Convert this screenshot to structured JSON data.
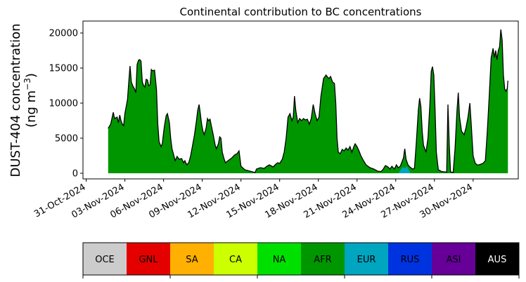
{
  "chart_data": {
    "type": "area",
    "title": "Continental contribution to BC concentrations",
    "ylabel_line1": "DUST-404 concentration",
    "ylabel_line2_prefix": "(ng m",
    "ylabel_line2_exponent": "−3",
    "ylabel_line2_suffix": ")",
    "xlabel": "",
    "ylim": [
      -800,
      21700
    ],
    "yticks": [
      0,
      5000,
      10000,
      15000,
      20000
    ],
    "ytick_labels": [
      "0",
      "5000",
      "10000",
      "15000",
      "20000"
    ],
    "xlim_days": [
      -0.25,
      33.5
    ],
    "xticks_days": [
      0,
      3,
      6,
      9,
      12,
      15,
      18,
      21,
      24,
      27,
      30
    ],
    "xtick_labels": [
      "31-Oct-2024",
      "03-Nov-2024",
      "06-Nov-2024",
      "09-Nov-2024",
      "12-Nov-2024",
      "15-Nov-2024",
      "18-Nov-2024",
      "21-Nov-2024",
      "24-Nov-2024",
      "27-Nov-2024",
      "30-Nov-2024"
    ],
    "x_unit_note": "x values are days after 31-Oct-2024",
    "series": [
      {
        "name": "AFR",
        "color": "#009600",
        "points": [
          [
            1.7,
            6400
          ],
          [
            1.9,
            7000
          ],
          [
            2.1,
            8700
          ],
          [
            2.2,
            7800
          ],
          [
            2.4,
            8000
          ],
          [
            2.5,
            7200
          ],
          [
            2.6,
            8300
          ],
          [
            2.7,
            7500
          ],
          [
            2.8,
            7000
          ],
          [
            2.9,
            6800
          ],
          [
            3.0,
            8500
          ],
          [
            3.2,
            10500
          ],
          [
            3.3,
            13000
          ],
          [
            3.4,
            15300
          ],
          [
            3.5,
            13000
          ],
          [
            3.6,
            12500
          ],
          [
            3.75,
            12000
          ],
          [
            3.85,
            11500
          ],
          [
            3.95,
            15500
          ],
          [
            4.05,
            16100
          ],
          [
            4.15,
            16200
          ],
          [
            4.25,
            16000
          ],
          [
            4.35,
            13000
          ],
          [
            4.45,
            12500
          ],
          [
            4.55,
            12300
          ],
          [
            4.65,
            13400
          ],
          [
            4.75,
            13300
          ],
          [
            4.85,
            12500
          ],
          [
            4.95,
            12600
          ],
          [
            5.05,
            14800
          ],
          [
            5.15,
            14600
          ],
          [
            5.3,
            14700
          ],
          [
            5.45,
            12000
          ],
          [
            5.55,
            7000
          ],
          [
            5.65,
            4500
          ],
          [
            5.8,
            3800
          ],
          [
            5.9,
            4200
          ],
          [
            6.05,
            6500
          ],
          [
            6.2,
            8200
          ],
          [
            6.3,
            8500
          ],
          [
            6.45,
            7200
          ],
          [
            6.55,
            5000
          ],
          [
            6.65,
            3500
          ],
          [
            6.8,
            2500
          ],
          [
            6.9,
            1800
          ],
          [
            7.05,
            2400
          ],
          [
            7.2,
            2000
          ],
          [
            7.4,
            2100
          ],
          [
            7.55,
            1500
          ],
          [
            7.65,
            1800
          ],
          [
            7.8,
            1200
          ],
          [
            7.95,
            1500
          ],
          [
            8.1,
            2500
          ],
          [
            8.25,
            4000
          ],
          [
            8.4,
            5500
          ],
          [
            8.55,
            7500
          ],
          [
            8.65,
            9000
          ],
          [
            8.75,
            9800
          ],
          [
            8.85,
            8500
          ],
          [
            8.95,
            7000
          ],
          [
            9.05,
            6000
          ],
          [
            9.15,
            5500
          ],
          [
            9.3,
            6500
          ],
          [
            9.4,
            7800
          ],
          [
            9.5,
            7500
          ],
          [
            9.6,
            7700
          ],
          [
            9.7,
            6800
          ],
          [
            9.85,
            5500
          ],
          [
            10.0,
            4000
          ],
          [
            10.1,
            3500
          ],
          [
            10.25,
            4200
          ],
          [
            10.35,
            5200
          ],
          [
            10.45,
            5000
          ],
          [
            10.55,
            3000
          ],
          [
            10.7,
            2000
          ],
          [
            10.8,
            1500
          ],
          [
            11.0,
            1800
          ],
          [
            11.3,
            2200
          ],
          [
            11.5,
            2600
          ],
          [
            11.7,
            2800
          ],
          [
            11.85,
            3200
          ],
          [
            12.0,
            1000
          ],
          [
            12.3,
            500
          ],
          [
            12.6,
            350
          ],
          [
            12.9,
            200
          ],
          [
            13.1,
            100
          ],
          [
            13.2,
            600
          ],
          [
            13.5,
            800
          ],
          [
            13.8,
            700
          ],
          [
            14.0,
            1000
          ],
          [
            14.2,
            1200
          ],
          [
            14.5,
            900
          ],
          [
            14.7,
            1300
          ],
          [
            14.85,
            1500
          ],
          [
            15.0,
            1400
          ],
          [
            15.2,
            2000
          ],
          [
            15.35,
            3000
          ],
          [
            15.5,
            5000
          ],
          [
            15.65,
            8000
          ],
          [
            15.8,
            8500
          ],
          [
            15.95,
            7500
          ],
          [
            16.05,
            8000
          ],
          [
            16.15,
            11000
          ],
          [
            16.25,
            9000
          ],
          [
            16.4,
            7200
          ],
          [
            16.55,
            7800
          ],
          [
            16.7,
            7500
          ],
          [
            16.85,
            7800
          ],
          [
            17.0,
            7600
          ],
          [
            17.15,
            7700
          ],
          [
            17.3,
            7000
          ],
          [
            17.45,
            7800
          ],
          [
            17.6,
            9800
          ],
          [
            17.75,
            8500
          ],
          [
            17.9,
            7500
          ],
          [
            18.05,
            8000
          ],
          [
            18.2,
            11000
          ],
          [
            18.4,
            13500
          ],
          [
            18.6,
            14000
          ],
          [
            18.8,
            13500
          ],
          [
            18.95,
            13800
          ],
          [
            19.1,
            13000
          ],
          [
            19.25,
            12800
          ],
          [
            19.35,
            10000
          ],
          [
            19.45,
            5000
          ],
          [
            19.55,
            3000
          ],
          [
            19.7,
            2800
          ],
          [
            19.85,
            3400
          ],
          [
            20.0,
            3200
          ],
          [
            20.15,
            3600
          ],
          [
            20.3,
            3300
          ],
          [
            20.45,
            3800
          ],
          [
            20.6,
            3000
          ],
          [
            20.75,
            3800
          ],
          [
            20.85,
            4200
          ],
          [
            21.0,
            3800
          ],
          [
            21.15,
            3200
          ],
          [
            21.3,
            2500
          ],
          [
            21.5,
            1800
          ],
          [
            21.7,
            1200
          ],
          [
            22.0,
            800
          ],
          [
            22.3,
            600
          ],
          [
            22.6,
            300
          ],
          [
            22.85,
            250
          ],
          [
            23.0,
            500
          ],
          [
            23.2,
            1100
          ],
          [
            23.4,
            900
          ],
          [
            23.55,
            600
          ],
          [
            23.7,
            1000
          ],
          [
            23.9,
            600
          ],
          [
            24.05,
            1200
          ],
          [
            24.2,
            800
          ],
          [
            24.35,
            1000
          ],
          [
            24.5,
            1700
          ],
          [
            24.6,
            2200
          ],
          [
            24.7,
            3500
          ],
          [
            24.8,
            2000
          ],
          [
            24.95,
            1200
          ],
          [
            25.1,
            900
          ],
          [
            25.3,
            600
          ],
          [
            25.45,
            700
          ],
          [
            25.6,
            4500
          ],
          [
            25.75,
            9000
          ],
          [
            25.85,
            10700
          ],
          [
            25.95,
            9500
          ],
          [
            26.05,
            6000
          ],
          [
            26.15,
            4000
          ],
          [
            26.35,
            3000
          ],
          [
            26.5,
            5000
          ],
          [
            26.65,
            10000
          ],
          [
            26.75,
            14500
          ],
          [
            26.85,
            15200
          ],
          [
            26.95,
            14000
          ],
          [
            27.05,
            9000
          ],
          [
            27.15,
            3000
          ],
          [
            27.3,
            500
          ],
          [
            27.55,
            250
          ],
          [
            27.8,
            200
          ],
          [
            27.95,
            150
          ],
          [
            28.05,
            9800
          ],
          [
            28.15,
            4000
          ],
          [
            28.25,
            200
          ],
          [
            28.45,
            100
          ],
          [
            28.6,
            3500
          ],
          [
            28.75,
            9000
          ],
          [
            28.85,
            11500
          ],
          [
            28.95,
            8000
          ],
          [
            29.1,
            6000
          ],
          [
            29.3,
            5500
          ],
          [
            29.45,
            6500
          ],
          [
            29.6,
            8000
          ],
          [
            29.75,
            10000
          ],
          [
            29.85,
            7000
          ],
          [
            30.0,
            2500
          ],
          [
            30.15,
            1500
          ],
          [
            30.3,
            1200
          ],
          [
            30.45,
            1200
          ],
          [
            30.6,
            1300
          ],
          [
            30.75,
            1400
          ],
          [
            30.95,
            1800
          ],
          [
            31.1,
            6000
          ],
          [
            31.25,
            11000
          ],
          [
            31.4,
            16500
          ],
          [
            31.55,
            17800
          ],
          [
            31.65,
            16500
          ],
          [
            31.75,
            17500
          ],
          [
            31.85,
            16200
          ],
          [
            31.95,
            17500
          ],
          [
            32.05,
            18000
          ],
          [
            32.15,
            20500
          ],
          [
            32.25,
            19000
          ],
          [
            32.35,
            14000
          ],
          [
            32.45,
            12000
          ],
          [
            32.55,
            11700
          ],
          [
            32.65,
            12100
          ],
          [
            32.7,
            13200
          ]
        ]
      },
      {
        "name": "EUR",
        "color": "#00a5c0",
        "points": [
          [
            24.2,
            0
          ],
          [
            24.35,
            400
          ],
          [
            24.55,
            900
          ],
          [
            24.7,
            700
          ],
          [
            24.85,
            1000
          ],
          [
            25.0,
            500
          ],
          [
            25.15,
            0
          ]
        ]
      }
    ]
  },
  "legend": {
    "items": [
      {
        "label": "OCE",
        "color": "#cccccc",
        "text_color": "#000000"
      },
      {
        "label": "GNL",
        "color": "#e50000",
        "text_color": "#000000"
      },
      {
        "label": "SA",
        "color": "#ffb000",
        "text_color": "#000000"
      },
      {
        "label": "CA",
        "color": "#ccff00",
        "text_color": "#000000"
      },
      {
        "label": "NA",
        "color": "#00e000",
        "text_color": "#000000"
      },
      {
        "label": "AFR",
        "color": "#009600",
        "text_color": "#000000"
      },
      {
        "label": "EUR",
        "color": "#00a5c0",
        "text_color": "#000000"
      },
      {
        "label": "RUS",
        "color": "#0033e0",
        "text_color": "#000000"
      },
      {
        "label": "ASI",
        "color": "#660099",
        "text_color": "#000000"
      },
      {
        "label": "AUS",
        "color": "#000000",
        "text_color": "#ffffff"
      }
    ]
  }
}
